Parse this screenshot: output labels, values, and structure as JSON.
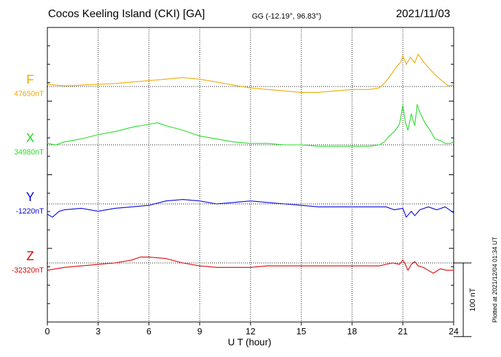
{
  "header": {
    "station": "Cocos Keeling Island (CKI)  [GA]",
    "coords": "GG (-12.19°,  96.83°)",
    "date": "2021/11/03"
  },
  "footer": {
    "plotted": "Plotted at 2021/12/04 01:34 UT"
  },
  "chart_data": {
    "type": "line",
    "xlabel": "U T (hour)",
    "xlim": [
      0,
      24
    ],
    "xticks": [
      0,
      3,
      6,
      9,
      12,
      15,
      18,
      21,
      24
    ],
    "scale_bar_label": "100 nT",
    "scale_bar_nT": 100,
    "y_span_nT": 400,
    "series": [
      {
        "name": "F",
        "baseline_label": "47650nT",
        "baseline_nT": 47650,
        "color": "#f0a800",
        "x": [
          0,
          0.5,
          1,
          1.5,
          2,
          3,
          4,
          5,
          6,
          7,
          8,
          9,
          10,
          11,
          12,
          13,
          14,
          15,
          16,
          17,
          18,
          19,
          19.6,
          19.9,
          20.3,
          20.6,
          20.9,
          21.0,
          21.2,
          21.45,
          21.7,
          21.9,
          22.2,
          22.5,
          22.9,
          23.3,
          23.7,
          24
        ],
        "y": [
          3,
          2,
          1,
          1,
          2,
          3,
          4,
          6,
          8,
          10,
          12,
          10,
          6,
          2,
          -2,
          -4,
          -6,
          -8,
          -8,
          -6,
          -4,
          -4,
          -2,
          4,
          16,
          26,
          34,
          42,
          30,
          40,
          32,
          44,
          34,
          26,
          16,
          8,
          1,
          2
        ]
      },
      {
        "name": "X",
        "baseline_label": "34980nT",
        "baseline_nT": 34980,
        "color": "#22dd22",
        "x": [
          0,
          0.5,
          1,
          2,
          3,
          4,
          5,
          6,
          6.5,
          7,
          8,
          9,
          10,
          11,
          12,
          13,
          14,
          15,
          16,
          17,
          18,
          19,
          19.6,
          19.9,
          20.2,
          20.5,
          20.8,
          21.0,
          21.15,
          21.3,
          21.5,
          21.7,
          21.85,
          22.0,
          22.3,
          22.6,
          22.9,
          23.2,
          23.5,
          23.8,
          24
        ],
        "y": [
          2,
          0,
          4,
          8,
          14,
          18,
          24,
          28,
          30,
          26,
          20,
          12,
          8,
          4,
          2,
          2,
          0,
          0,
          -2,
          -2,
          -2,
          -2,
          0,
          4,
          12,
          18,
          28,
          54,
          30,
          20,
          42,
          26,
          55,
          44,
          30,
          20,
          8,
          6,
          2,
          2,
          4
        ]
      },
      {
        "name": "Y",
        "baseline_label": "-1220nT",
        "baseline_nT": -1220,
        "color": "#0000dd",
        "x": [
          0,
          0.3,
          0.7,
          1,
          2,
          3,
          3.5,
          4,
          5,
          6,
          7,
          8,
          9,
          10,
          11,
          12,
          13,
          14,
          15,
          16,
          17,
          18,
          19,
          20,
          20.5,
          21,
          21.2,
          21.5,
          21.7,
          22,
          22.5,
          23,
          23.5,
          24
        ],
        "y": [
          -14,
          -18,
          -10,
          -8,
          -6,
          -10,
          -8,
          -6,
          -4,
          -2,
          4,
          6,
          4,
          0,
          2,
          4,
          2,
          0,
          -2,
          -4,
          -4,
          -4,
          -4,
          -4,
          -8,
          -6,
          -18,
          -10,
          -16,
          -8,
          -4,
          -8,
          -4,
          -12
        ]
      },
      {
        "name": "Z",
        "baseline_label": "-32320nT",
        "baseline_nT": -32320,
        "color": "#dd0000",
        "x": [
          0,
          1,
          2,
          3,
          4,
          5,
          5.5,
          6,
          7,
          8,
          9,
          10,
          11,
          12,
          13,
          14,
          15,
          16,
          17,
          18,
          19,
          19.6,
          20.0,
          20.4,
          20.8,
          21.0,
          21.15,
          21.3,
          21.5,
          21.7,
          21.9,
          22.2,
          22.5,
          22.8,
          23.2,
          23.6,
          24
        ],
        "y": [
          -10,
          -6,
          -4,
          -2,
          0,
          4,
          8,
          8,
          6,
          0,
          -4,
          -6,
          -6,
          -6,
          -4,
          -4,
          -4,
          -4,
          -4,
          -4,
          -4,
          -4,
          -2,
          0,
          -2,
          4,
          -2,
          -10,
          -2,
          2,
          -4,
          -6,
          -10,
          -14,
          -8,
          -10,
          -10
        ]
      }
    ]
  }
}
